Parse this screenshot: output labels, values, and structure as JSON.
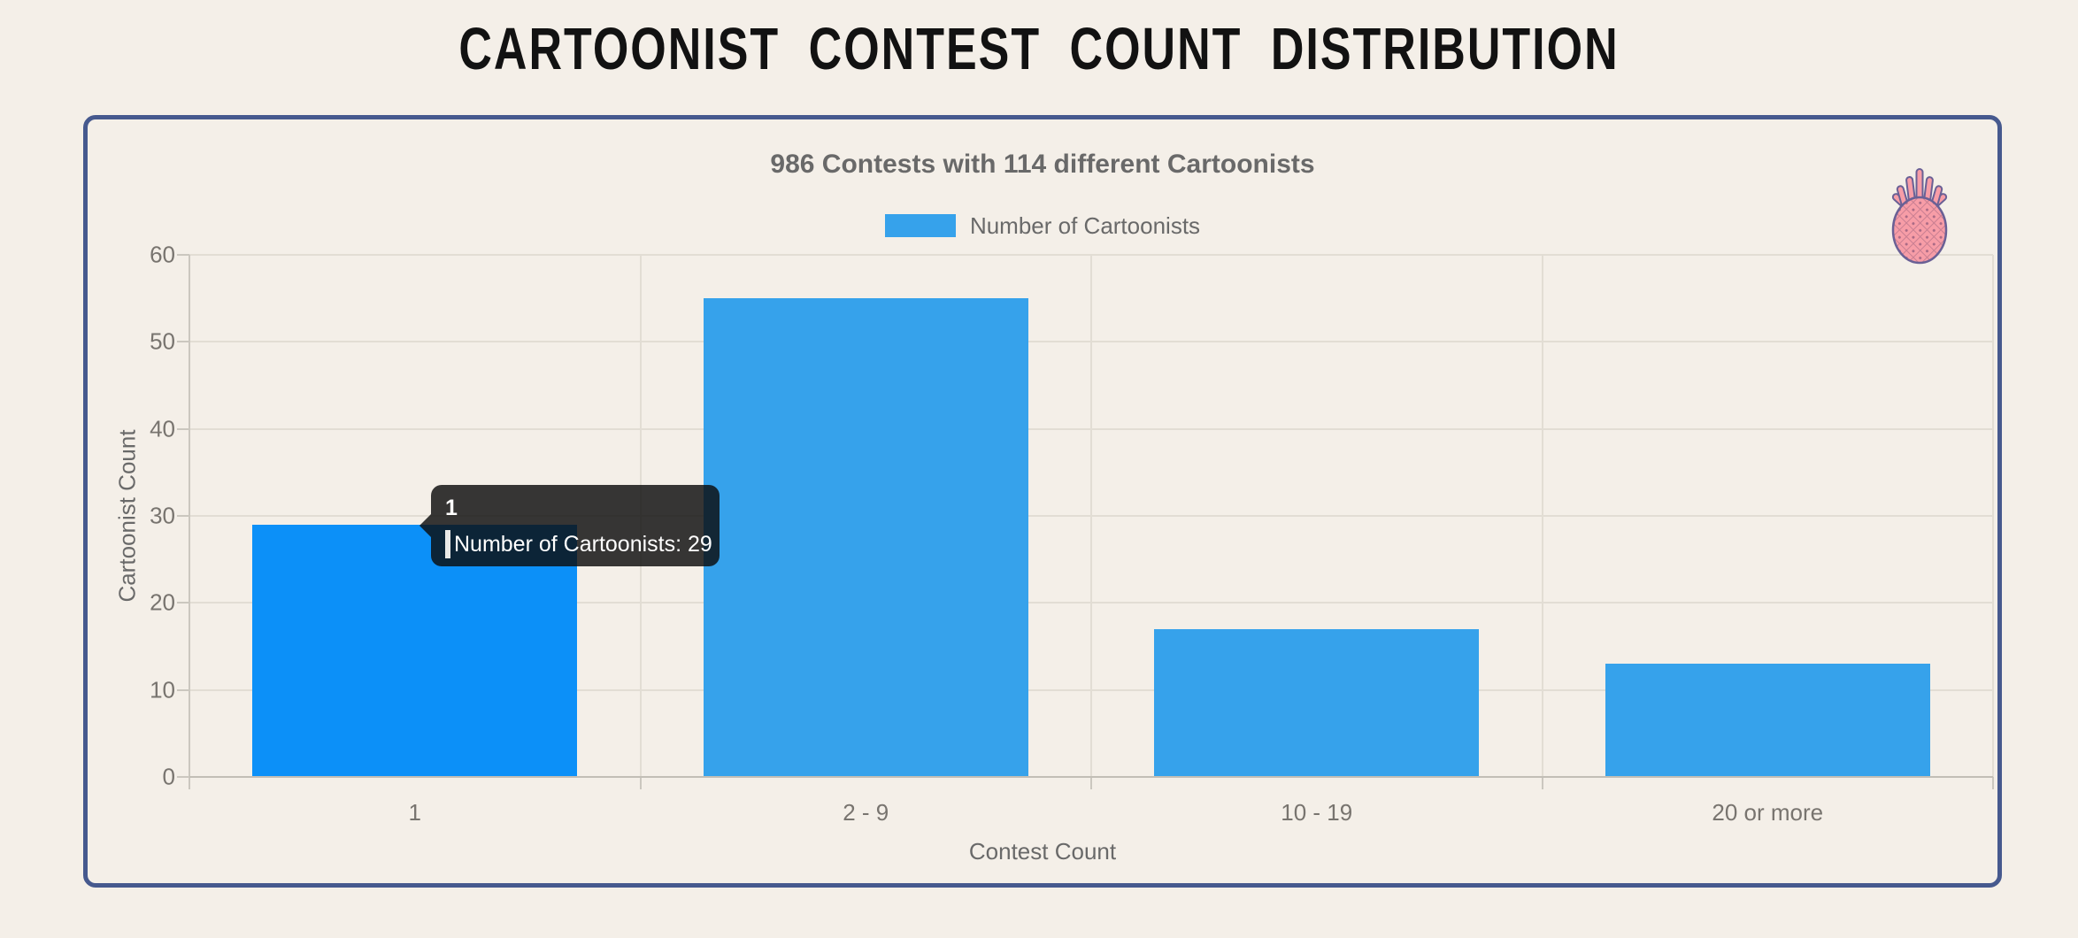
{
  "page": {
    "title": "CARTOONIST CONTEST COUNT DISTRIBUTION",
    "background_color": "#f4efe8"
  },
  "card": {
    "border_color": "#46598e"
  },
  "chart_data": {
    "type": "bar",
    "title": "986 Contests with 114 different Cartoonists",
    "categories": [
      "1",
      "2 - 9",
      "10 - 19",
      "20 or more"
    ],
    "series": [
      {
        "name": "Number of Cartoonists",
        "values": [
          29,
          55,
          17,
          13
        ]
      }
    ],
    "xlabel": "Contest Count",
    "ylabel": "Cartoonist Count",
    "ylim": [
      0,
      60
    ],
    "yticks": [
      "0",
      "10",
      "20",
      "30",
      "40",
      "50",
      "60"
    ],
    "grid": true,
    "legend_position": "top",
    "bar_color": "#36a2eb",
    "hovered_bar_color": "#0c90f8",
    "hovered_index": 0,
    "bar_percentage_of_category": 0.72
  },
  "tooltip": {
    "title": "1",
    "label": "Number of Cartoonists: 29",
    "swatch_color": "#3da2ee"
  },
  "decoration": {
    "icon": "pineapple",
    "fill_color": "#f79da7",
    "hatch_color": "#c97f92",
    "outline_color": "#6a6095"
  }
}
